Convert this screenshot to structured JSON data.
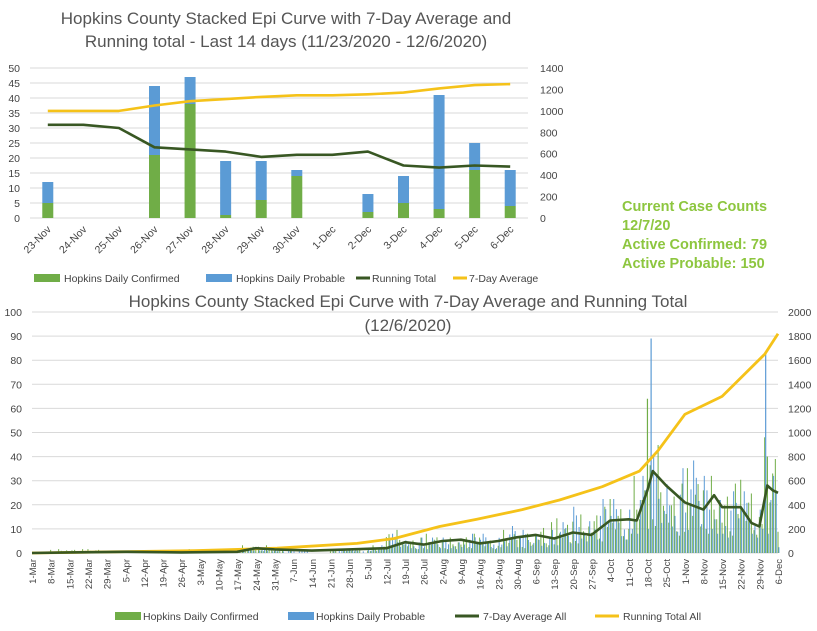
{
  "info_box": {
    "heading": "Current Case Counts",
    "date": "12/7/20",
    "active_confirmed": "Active Confirmed: 79",
    "active_probable": "Active Probable: 150"
  },
  "colors": {
    "confirmed": "#70ad47",
    "probable": "#5b9bd5",
    "avg": "#385723",
    "total": "#f5c219"
  },
  "chart_data": [
    {
      "type": "bar",
      "title": "Hopkins County Stacked Epi Curve with 7-Day Average and Running total - Last 14 days (11/23/2020 - 12/6/2020)",
      "title_lines": [
        "Hopkins County Stacked Epi Curve with 7-Day Average and",
        "Running total - Last 14 days (11/23/2020 - 12/6/2020)"
      ],
      "stacked": true,
      "categories": [
        "23-Nov",
        "24-Nov",
        "25-Nov",
        "26-Nov",
        "27-Nov",
        "28-Nov",
        "29-Nov",
        "30-Nov",
        "1-Dec",
        "2-Dec",
        "3-Dec",
        "4-Dec",
        "5-Dec",
        "6-Dec"
      ],
      "series": [
        {
          "name": "Hopkins Daily Confirmed",
          "axis": "left",
          "kind": "bar",
          "values": [
            5,
            0,
            0,
            21,
            38,
            1,
            6,
            14,
            0,
            2,
            5,
            3,
            16,
            4
          ]
        },
        {
          "name": "Hopkins Daily Probable",
          "axis": "left",
          "kind": "bar",
          "values": [
            7,
            0,
            0,
            23,
            9,
            18,
            13,
            2,
            0,
            6,
            9,
            38,
            9,
            12
          ]
        },
        {
          "name": "Running Total",
          "axis": "right",
          "kind": "line",
          "values": [
            870,
            870,
            840,
            660,
            640,
            620,
            570,
            590,
            590,
            620,
            490,
            470,
            490,
            480
          ]
        },
        {
          "name": "7-Day Average",
          "axis": "right",
          "kind": "line",
          "values": [
            1000,
            1000,
            1000,
            1050,
            1090,
            1110,
            1130,
            1145,
            1145,
            1155,
            1170,
            1210,
            1240,
            1250
          ]
        }
      ],
      "y_left_ticks": [
        "0",
        "5",
        "10",
        "15",
        "20",
        "25",
        "30",
        "35",
        "40",
        "45",
        "50"
      ],
      "y_right_ticks": [
        "0",
        "200",
        "400",
        "600",
        "800",
        "1000",
        "1200",
        "1400"
      ],
      "ylim_left": [
        0,
        50
      ],
      "ylim_right": [
        0,
        1400
      ],
      "legend": [
        "Hopkins Daily Confirmed",
        "Hopkins Daily Probable",
        "Running Total",
        "7-Day Average"
      ],
      "legend_position": "bottom",
      "grid": true
    },
    {
      "type": "bar",
      "title": "Hopkins County Stacked Epi Curve with 7-Day Average and Running Total (12/6/2020)",
      "title_lines": [
        "Hopkins County Stacked Epi Curve with 7-Day Average and Running Total",
        "(12/6/2020)"
      ],
      "stacked": true,
      "x_start": "2020-03-01",
      "x_end": "2020-12-06",
      "x_tick_labels": [
        "1-Mar",
        "8-Mar",
        "15-Mar",
        "22-Mar",
        "29-Mar",
        "5-Apr",
        "12-Apr",
        "19-Apr",
        "26-Apr",
        "3-May",
        "10-May",
        "17-May",
        "24-May",
        "31-May",
        "7-Jun",
        "14-Jun",
        "21-Jun",
        "28-Jun",
        "5-Jul",
        "12-Jul",
        "19-Jul",
        "26-Jul",
        "2-Aug",
        "9-Aug",
        "16-Aug",
        "23-Aug",
        "30-Aug",
        "6-Sep",
        "13-Sep",
        "20-Sep",
        "27-Sep",
        "4-Oct",
        "11-Oct",
        "18-Oct",
        "25-Oct",
        "1-Nov",
        "8-Nov",
        "15-Nov",
        "22-Nov",
        "29-Nov",
        "6-Dec"
      ],
      "y_left_ticks": [
        "0",
        "10",
        "20",
        "30",
        "40",
        "50",
        "60",
        "70",
        "80",
        "90",
        "100"
      ],
      "y_right_ticks": [
        "0",
        "200",
        "400",
        "600",
        "800",
        "1000",
        "1200",
        "1400",
        "1600",
        "1800",
        "2000"
      ],
      "ylim_left": [
        0,
        100
      ],
      "ylim_right": [
        0,
        2000
      ],
      "series": [
        {
          "name": "Hopkins Daily Confirmed",
          "axis": "left",
          "kind": "bar",
          "weekly_values": [
            0,
            1,
            1,
            1,
            0,
            0,
            0,
            0,
            1,
            1,
            0,
            2,
            2,
            1,
            0,
            0,
            1,
            1,
            2,
            6,
            4,
            5,
            4,
            5,
            4,
            6,
            5,
            8,
            9,
            10,
            12,
            14,
            20,
            28,
            18,
            22,
            20,
            18,
            19,
            30,
            8
          ],
          "peaks": [
            {
              "x": "2020-10-18",
              "value": 64
            },
            {
              "x": "2020-12-02",
              "value": 40
            }
          ]
        },
        {
          "name": "Hopkins Daily Probable",
          "axis": "left",
          "kind": "bar",
          "weekly_values": [
            0,
            0,
            0,
            0,
            0,
            0,
            0,
            0,
            0,
            0,
            0,
            1,
            1,
            1,
            1,
            0,
            1,
            1,
            2,
            5,
            4,
            4,
            4,
            5,
            5,
            7,
            6,
            6,
            8,
            12,
            14,
            14,
            20,
            25,
            22,
            24,
            20,
            16,
            16,
            20,
            6
          ],
          "peaks": [
            {
              "x": "2020-10-19",
              "value": 89
            },
            {
              "x": "2020-12-01",
              "value": 83
            }
          ]
        },
        {
          "name": "7-Day Average All",
          "axis": "right",
          "kind": "line",
          "points": [
            [
              "2020-03-01",
              0
            ],
            [
              "2020-03-15",
              5
            ],
            [
              "2020-04-05",
              10
            ],
            [
              "2020-04-26",
              5
            ],
            [
              "2020-05-17",
              10
            ],
            [
              "2020-05-24",
              40
            ],
            [
              "2020-05-31",
              30
            ],
            [
              "2020-06-14",
              20
            ],
            [
              "2020-06-28",
              30
            ],
            [
              "2020-07-12",
              40
            ],
            [
              "2020-07-19",
              90
            ],
            [
              "2020-07-26",
              70
            ],
            [
              "2020-08-02",
              100
            ],
            [
              "2020-08-09",
              110
            ],
            [
              "2020-08-16",
              80
            ],
            [
              "2020-08-23",
              100
            ],
            [
              "2020-08-30",
              130
            ],
            [
              "2020-09-06",
              150
            ],
            [
              "2020-09-13",
              120
            ],
            [
              "2020-09-20",
              170
            ],
            [
              "2020-09-27",
              150
            ],
            [
              "2020-10-04",
              270
            ],
            [
              "2020-10-11",
              280
            ],
            [
              "2020-10-14",
              270
            ],
            [
              "2020-10-18",
              520
            ],
            [
              "2020-10-20",
              680
            ],
            [
              "2020-10-25",
              560
            ],
            [
              "2020-11-01",
              420
            ],
            [
              "2020-11-08",
              360
            ],
            [
              "2020-11-12",
              480
            ],
            [
              "2020-11-15",
              380
            ],
            [
              "2020-11-22",
              380
            ],
            [
              "2020-11-26",
              250
            ],
            [
              "2020-11-29",
              220
            ],
            [
              "2020-12-02",
              560
            ],
            [
              "2020-12-04",
              520
            ],
            [
              "2020-12-06",
              500
            ]
          ]
        },
        {
          "name": "Running Total All",
          "axis": "right",
          "kind": "line",
          "points": [
            [
              "2020-03-01",
              0
            ],
            [
              "2020-04-01",
              10
            ],
            [
              "2020-05-01",
              20
            ],
            [
              "2020-06-01",
              40
            ],
            [
              "2020-07-01",
              80
            ],
            [
              "2020-07-15",
              120
            ],
            [
              "2020-08-01",
              220
            ],
            [
              "2020-08-15",
              280
            ],
            [
              "2020-09-01",
              360
            ],
            [
              "2020-09-15",
              440
            ],
            [
              "2020-10-01",
              550
            ],
            [
              "2020-10-15",
              680
            ],
            [
              "2020-10-22",
              850
            ],
            [
              "2020-11-01",
              1150
            ],
            [
              "2020-11-15",
              1300
            ],
            [
              "2020-12-01",
              1650
            ],
            [
              "2020-12-06",
              1820
            ]
          ]
        }
      ],
      "legend": [
        "Hopkins Daily Confirmed",
        "Hopkins Daily Probable",
        "7-Day Average All",
        "Running Total All"
      ],
      "legend_position": "bottom",
      "grid": true
    }
  ]
}
